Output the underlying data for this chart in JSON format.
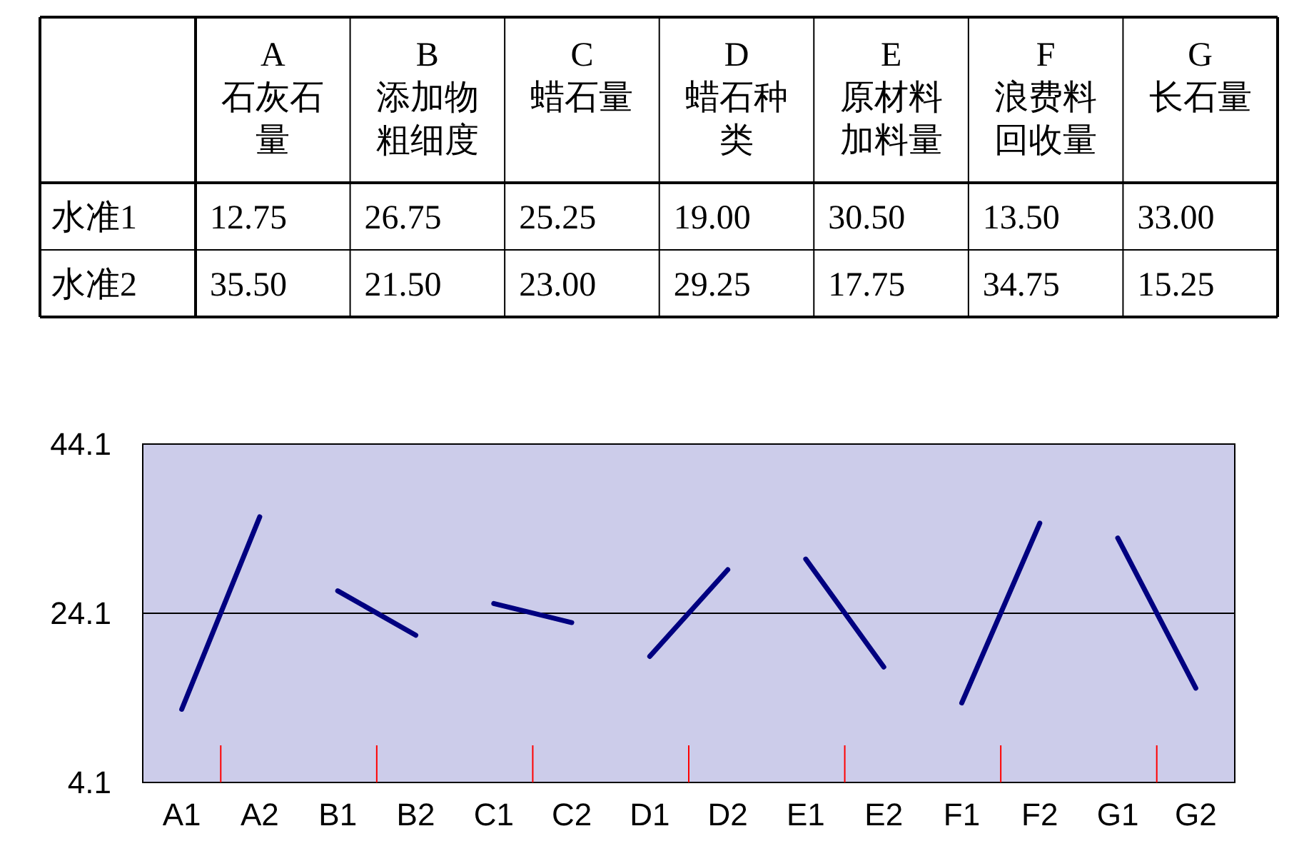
{
  "chart_data": [
    {
      "type": "heatmap",
      "categories": [
        "A 石灰石量",
        "B 添加物粗细度",
        "C 蜡石量",
        "D 蜡石种类",
        "E 原材料加料量",
        "F 浪费料回收量",
        "G 长石量"
      ],
      "y_categories": [
        "水准1",
        "水准2"
      ],
      "cells": [
        [
          12.75,
          26.75,
          25.25,
          19.0,
          30.5,
          13.5,
          33.0
        ],
        [
          35.5,
          21.5,
          23.0,
          29.25,
          17.75,
          34.75,
          15.25
        ]
      ],
      "cell_labels": [
        [
          "12.75",
          "26.75",
          "25.25",
          "19.00",
          "30.50",
          "13.50",
          "33.00"
        ],
        [
          "35.50",
          "21.50",
          "23.00",
          "29.25",
          "17.75",
          "34.75",
          "15.25"
        ]
      ],
      "data_labels": true
    },
    {
      "type": "line",
      "categories": [
        "A1",
        "A2",
        "B1",
        "B2",
        "C1",
        "C2",
        "D1",
        "D2",
        "E1",
        "E2",
        "F1",
        "F2",
        "G1",
        "G2"
      ],
      "series": [
        {
          "color": "#000080",
          "values": [
            12.75,
            35.5,
            null,
            null,
            null,
            null,
            null,
            null,
            null,
            null,
            null,
            null,
            null,
            null
          ]
        },
        {
          "color": "#000080",
          "values": [
            null,
            null,
            26.75,
            21.5,
            null,
            null,
            null,
            null,
            null,
            null,
            null,
            null,
            null,
            null
          ]
        },
        {
          "color": "#000080",
          "values": [
            null,
            null,
            null,
            null,
            25.25,
            23.0,
            null,
            null,
            null,
            null,
            null,
            null,
            null,
            null
          ]
        },
        {
          "color": "#000080",
          "values": [
            null,
            null,
            null,
            null,
            null,
            null,
            19.0,
            29.25,
            null,
            null,
            null,
            null,
            null,
            null
          ]
        },
        {
          "color": "#000080",
          "values": [
            null,
            null,
            null,
            null,
            null,
            null,
            null,
            null,
            30.5,
            17.75,
            null,
            null,
            null,
            null
          ]
        },
        {
          "color": "#000080",
          "values": [
            null,
            null,
            null,
            null,
            null,
            null,
            null,
            null,
            null,
            null,
            13.5,
            34.75,
            null,
            null
          ]
        },
        {
          "color": "#000080",
          "values": [
            null,
            null,
            null,
            null,
            null,
            null,
            null,
            null,
            null,
            null,
            null,
            null,
            33.0,
            15.25
          ]
        }
      ],
      "ylim": [
        4.1,
        44.1
      ],
      "yticks": [
        4.1,
        24.1,
        44.1
      ],
      "marker": "none",
      "ref_lines": [
        {
          "axis": "y",
          "value": 24.1,
          "color": "#000000"
        }
      ]
    }
  ]
}
